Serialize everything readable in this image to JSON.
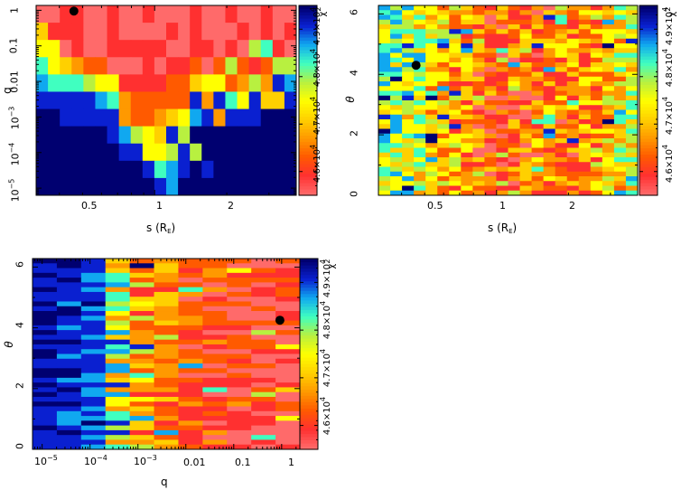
{
  "chart_data": [
    {
      "type": "heatmap",
      "id": "s-q",
      "xlabel": "s (R",
      "xlabel_sub": "E",
      "xlabel_close": ")",
      "ylabel": "q",
      "x_scale": "log",
      "y_scale": "log",
      "xlim": [
        0.32,
        3.9
      ],
      "ylim": [
        6.3e-06,
        1.37
      ],
      "x_ticks": [
        {
          "value": 0.5,
          "label": "0.5"
        },
        {
          "value": 1,
          "label": "1"
        },
        {
          "value": 2,
          "label": "2"
        }
      ],
      "y_ticks": [
        {
          "value": 1,
          "label": "1",
          "sup": ""
        },
        {
          "value": 0.1,
          "label": "0.1",
          "sup": ""
        },
        {
          "value": 0.01,
          "label": "0.01",
          "sup": ""
        },
        {
          "value": 0.001,
          "label": "10",
          "sup": "−3"
        },
        {
          "value": 0.0001,
          "label": "10",
          "sup": "−4"
        },
        {
          "value": 1e-05,
          "label": "10",
          "sup": "−5"
        }
      ],
      "levels_note": "0 = lowest chi2 (light red) ... a = highest chi2 (dark blue)",
      "rows_top_to_bottom": [
        "0011001001000100100100",
        "4111001000010100010101",
        "5501001111100110106710",
        "7543220001011202621266",
        "8777655111122455236398",
        "9999987322222939759449",
        "aa99999322345893999aaa",
        "aaaaaa9865496aaaaaaaa",
        "aaaaaaa9955696aaaaaaaa",
        "aaaaaaaaa9789a9aaaaaaa",
        "aaaaaaaaaa98aaaaaaaaaa"
      ],
      "best_fit": {
        "s": 0.46,
        "q": 0.95
      }
    },
    {
      "type": "heatmap",
      "id": "s-theta",
      "xlabel": "s (R",
      "xlabel_sub": "E",
      "xlabel_close": ")",
      "ylabel": "θ",
      "x_scale": "log",
      "y_scale": "linear",
      "xlim": [
        0.32,
        3.9
      ],
      "ylim": [
        0,
        6.28
      ],
      "x_ticks": [
        {
          "value": 0.5,
          "label": "0.5"
        },
        {
          "value": 1,
          "label": "1"
        },
        {
          "value": 2,
          "label": "2"
        }
      ],
      "y_ticks": [
        {
          "value": 0,
          "label": "0"
        },
        {
          "value": 2,
          "label": "2"
        },
        {
          "value": 4,
          "label": "4"
        },
        {
          "value": 6,
          "label": "6"
        }
      ],
      "best_fit": {
        "s": 0.46,
        "theta": 4.3
      }
    },
    {
      "type": "heatmap",
      "id": "q-theta",
      "xlabel": "q",
      "ylabel": "θ",
      "x_scale": "log",
      "y_scale": "linear",
      "xlim": [
        6.3e-06,
        2.4
      ],
      "ylim": [
        0,
        6.28
      ],
      "x_ticks": [
        {
          "value": 1e-05,
          "label": "10",
          "sup": "−5"
        },
        {
          "value": 0.0001,
          "label": "10",
          "sup": "−4"
        },
        {
          "value": 0.001,
          "label": "10",
          "sup": "−3"
        },
        {
          "value": 0.01,
          "label": "0.01",
          "sup": ""
        },
        {
          "value": 0.1,
          "label": "0.1",
          "sup": ""
        },
        {
          "value": 1,
          "label": "1",
          "sup": ""
        }
      ],
      "y_ticks": [
        {
          "value": 0,
          "label": "0"
        },
        {
          "value": 2,
          "label": "2"
        },
        {
          "value": 4,
          "label": "4"
        },
        {
          "value": 6,
          "label": "6"
        }
      ],
      "column_mean_levels": [
        9.6,
        9.2,
        8.8,
        6.0,
        3.8,
        2.4,
        1.8,
        1.4,
        1.0,
        0.8,
        0.6
      ],
      "best_fit": {
        "q": 0.92,
        "theta": 4.25
      }
    }
  ],
  "colorbar": {
    "label": "χ",
    "label_sup": "2",
    "range": [
      45500,
      49500
    ],
    "ticks": [
      {
        "value": 46000,
        "label": "4.6×10",
        "sup": "4"
      },
      {
        "value": 47000,
        "label": "4.7×10",
        "sup": "4"
      },
      {
        "value": 48000,
        "label": "4.8×10",
        "sup": "4"
      },
      {
        "value": 49000,
        "label": "4.9×10",
        "sup": "4"
      }
    ]
  },
  "colors": {
    "levels": [
      "#ff6a6a",
      "#ff3030",
      "#ff5a00",
      "#ff9900",
      "#ffd000",
      "#ffff00",
      "#b8f040",
      "#40ffc0",
      "#10a8f0",
      "#0a20d0",
      "#000070"
    ],
    "best_fit_marker": "#000000"
  }
}
